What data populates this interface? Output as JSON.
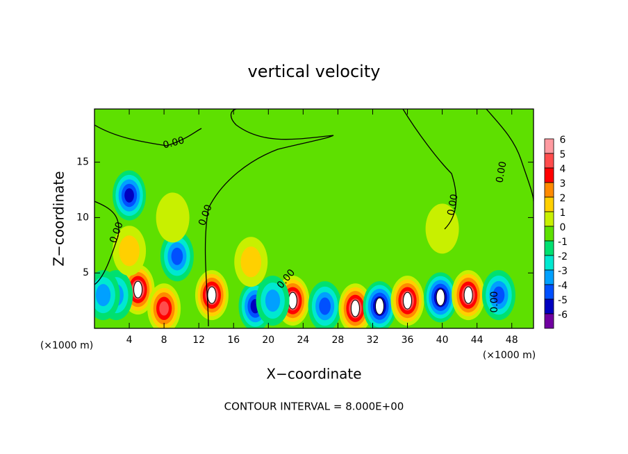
{
  "chart_data": {
    "type": "contour",
    "title": "vertical velocity",
    "x_label": "X−coordinate",
    "y_label": "Z−coordinate",
    "x_unit": "(×1000 m)",
    "footer": "CONTOUR INTERVAL = 8.000E+00",
    "contour_label": "0.00",
    "xlim": [
      0,
      50.5
    ],
    "ylim": [
      0,
      19.8
    ],
    "xticks": [
      4,
      8,
      12,
      16,
      20,
      24,
      28,
      32,
      36,
      40,
      44,
      48
    ],
    "yticks": [
      5,
      10,
      15
    ],
    "colorbar": {
      "levels": [
        6,
        5,
        4,
        3,
        2,
        1,
        0,
        -1,
        -2,
        -3,
        -4,
        -5,
        -6
      ],
      "colors": [
        "#ff9aa0",
        "#ff4c4c",
        "#ff0000",
        "#ff8a00",
        "#ffd000",
        "#c8f000",
        "#5ee000",
        "#00e070",
        "#00e8d0",
        "#00a0ff",
        "#0050ff",
        "#0000c0",
        "#7000a0"
      ]
    },
    "x": [
      5,
      8,
      9.5,
      4,
      2.5,
      13.5,
      18.5,
      22.8,
      26.5,
      30,
      32.8,
      36,
      39.8,
      43,
      46.5,
      9,
      4,
      18,
      40,
      1,
      20.5
    ],
    "y": [
      3.5,
      1.8,
      6.5,
      12,
      3,
      3,
      2,
      2.5,
      2,
      1.8,
      2,
      2.5,
      2.8,
      3,
      3,
      10,
      7,
      6,
      9,
      3,
      2.5
    ],
    "values": [
      6,
      5,
      -4,
      -5,
      -3,
      6,
      -5,
      6,
      -4,
      6,
      -6,
      6,
      -6,
      6,
      -4,
      1,
      2,
      2,
      1,
      -3,
      -3
    ]
  }
}
